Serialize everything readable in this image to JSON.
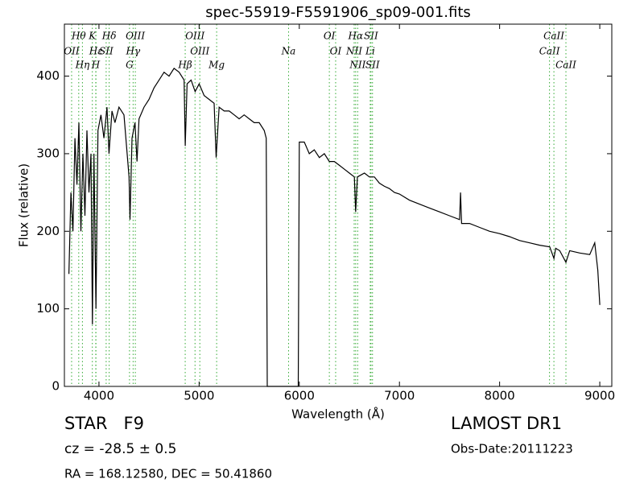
{
  "chart_data": {
    "type": "line",
    "title": "spec-55919-F5591906_sp09-001.fits",
    "xlabel": "Wavelength (Å)",
    "ylabel": "Flux (relative)",
    "xlim": [
      3655,
      9120
    ],
    "ylim": [
      0,
      467
    ],
    "xticks": [
      4000,
      5000,
      6000,
      7000,
      8000,
      9000
    ],
    "yticks": [
      0,
      100,
      200,
      300,
      400
    ],
    "series": [
      {
        "color": "#000000",
        "x": [
          3700,
          3720,
          3740,
          3760,
          3780,
          3800,
          3820,
          3840,
          3860,
          3880,
          3900,
          3920,
          3935,
          3950,
          3970,
          3990,
          4020,
          4050,
          4080,
          4100,
          4130,
          4160,
          4200,
          4250,
          4300,
          4310,
          4330,
          4360,
          4380,
          4400,
          4450,
          4500,
          4550,
          4600,
          4650,
          4700,
          4750,
          4800,
          4850,
          4861,
          4880,
          4920,
          4960,
          5000,
          5050,
          5100,
          5150,
          5170,
          5200,
          5250,
          5300,
          5350,
          5400,
          5450,
          5500,
          5550,
          5600,
          5650,
          5670,
          5680,
          5990,
          6000,
          6050,
          6100,
          6150,
          6200,
          6250,
          6300,
          6350,
          6400,
          6450,
          6500,
          6550,
          6563,
          6580,
          6650,
          6700,
          6750,
          6800,
          6850,
          6900,
          6950,
          7000,
          7100,
          7200,
          7300,
          7400,
          7500,
          7600,
          7610,
          7620,
          7700,
          7800,
          7900,
          8000,
          8100,
          8200,
          8300,
          8400,
          8500,
          8542,
          8560,
          8600,
          8662,
          8700,
          8800,
          8900,
          8950,
          8980,
          9000
        ],
        "values": [
          145,
          250,
          200,
          320,
          260,
          340,
          200,
          300,
          220,
          330,
          250,
          300,
          80,
          300,
          100,
          330,
          350,
          320,
          360,
          300,
          355,
          340,
          360,
          350,
          270,
          215,
          320,
          340,
          290,
          345,
          360,
          370,
          385,
          395,
          405,
          400,
          410,
          405,
          395,
          310,
          390,
          395,
          380,
          390,
          375,
          370,
          365,
          295,
          360,
          355,
          355,
          350,
          345,
          350,
          345,
          340,
          340,
          330,
          320,
          0,
          0,
          315,
          315,
          300,
          305,
          295,
          300,
          290,
          290,
          285,
          280,
          275,
          270,
          225,
          270,
          275,
          270,
          270,
          262,
          258,
          255,
          250,
          248,
          240,
          235,
          230,
          225,
          220,
          215,
          250,
          210,
          210,
          205,
          200,
          197,
          193,
          188,
          185,
          182,
          180,
          165,
          178,
          175,
          160,
          175,
          172,
          170,
          185,
          150,
          105
        ]
      }
    ],
    "spectral_lines": [
      {
        "label": "OII",
        "x": 3727
      },
      {
        "label": "Hθ",
        "x": 3798
      },
      {
        "label": "Hη",
        "x": 3835
      },
      {
        "label": "K",
        "x": 3934
      },
      {
        "label": "H",
        "x": 3968
      },
      {
        "label": "Hε",
        "x": 3970
      },
      {
        "label": "SII",
        "x": 4072
      },
      {
        "label": "Hδ",
        "x": 4102
      },
      {
        "label": "G",
        "x": 4305
      },
      {
        "label": "Hγ",
        "x": 4341
      },
      {
        "label": "OIII",
        "x": 4363
      },
      {
        "label": "Hβ",
        "x": 4861
      },
      {
        "label": "OIII",
        "x": 4959
      },
      {
        "label": "OIII",
        "x": 5007
      },
      {
        "label": "Mg",
        "x": 5175
      },
      {
        "label": "Na",
        "x": 5893
      },
      {
        "label": "OI",
        "x": 6300
      },
      {
        "label": "OI",
        "x": 6363
      },
      {
        "label": "NII",
        "x": 6548
      },
      {
        "label": "Hα",
        "x": 6563
      },
      {
        "label": "NII",
        "x": 6583
      },
      {
        "label": "Li",
        "x": 6708
      },
      {
        "label": "SII",
        "x": 6716
      },
      {
        "label": "SII",
        "x": 6731
      },
      {
        "label": "CaII",
        "x": 8498
      },
      {
        "label": "CaII",
        "x": 8542
      },
      {
        "label": "CaII",
        "x": 8662
      }
    ],
    "annotations": {
      "object": "STAR   F9",
      "redshift": "cz = -28.5 ± 0.5",
      "coords": "RA = 168.12580, DEC = 50.41860",
      "survey": "LAMOST DR1",
      "date": "Obs-Date:20111223"
    }
  }
}
